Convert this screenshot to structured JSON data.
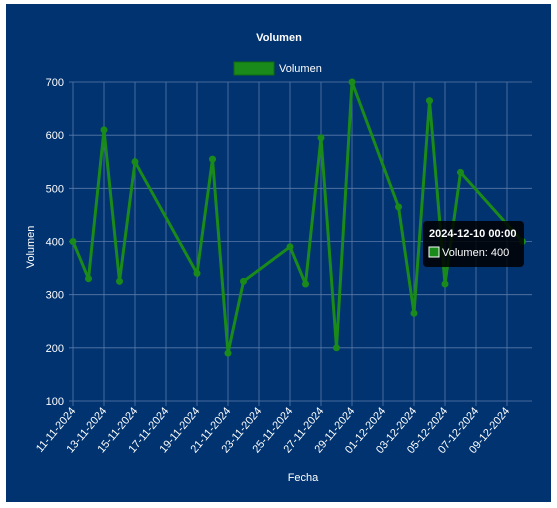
{
  "chart_data": {
    "type": "line",
    "title": "Volumen",
    "xlabel": "Fecha",
    "ylabel": "Volumen",
    "ylim": [
      100,
      700
    ],
    "yticks": [
      100,
      200,
      300,
      400,
      500,
      600,
      700
    ],
    "xticks": [
      "11-11-2024",
      "13-11-2024",
      "15-11-2024",
      "17-11-2024",
      "19-11-2024",
      "21-11-2024",
      "23-11-2024",
      "25-11-2024",
      "27-11-2024",
      "29-11-2024",
      "01-12-2024",
      "03-12-2024",
      "05-12-2024",
      "07-12-2024",
      "09-12-2024"
    ],
    "grid": true,
    "legend_position": "top",
    "series": [
      {
        "name": "Volumen",
        "color": "#1a8a1a",
        "x": [
          "2024-11-11",
          "2024-11-12",
          "2024-11-13",
          "2024-11-14",
          "2024-11-15",
          "2024-11-19",
          "2024-11-20",
          "2024-11-21",
          "2024-11-22",
          "2024-11-25",
          "2024-11-26",
          "2024-11-27",
          "2024-11-28",
          "2024-11-29",
          "2024-12-02",
          "2024-12-03",
          "2024-12-04",
          "2024-12-05",
          "2024-12-06",
          "2024-12-10"
        ],
        "values": [
          400,
          330,
          610,
          325,
          550,
          340,
          555,
          190,
          325,
          390,
          320,
          595,
          200,
          700,
          465,
          265,
          665,
          320,
          530,
          400
        ]
      }
    ],
    "tooltip": {
      "title": "2024-12-10 00:00",
      "label": "Volumen: 400"
    }
  }
}
